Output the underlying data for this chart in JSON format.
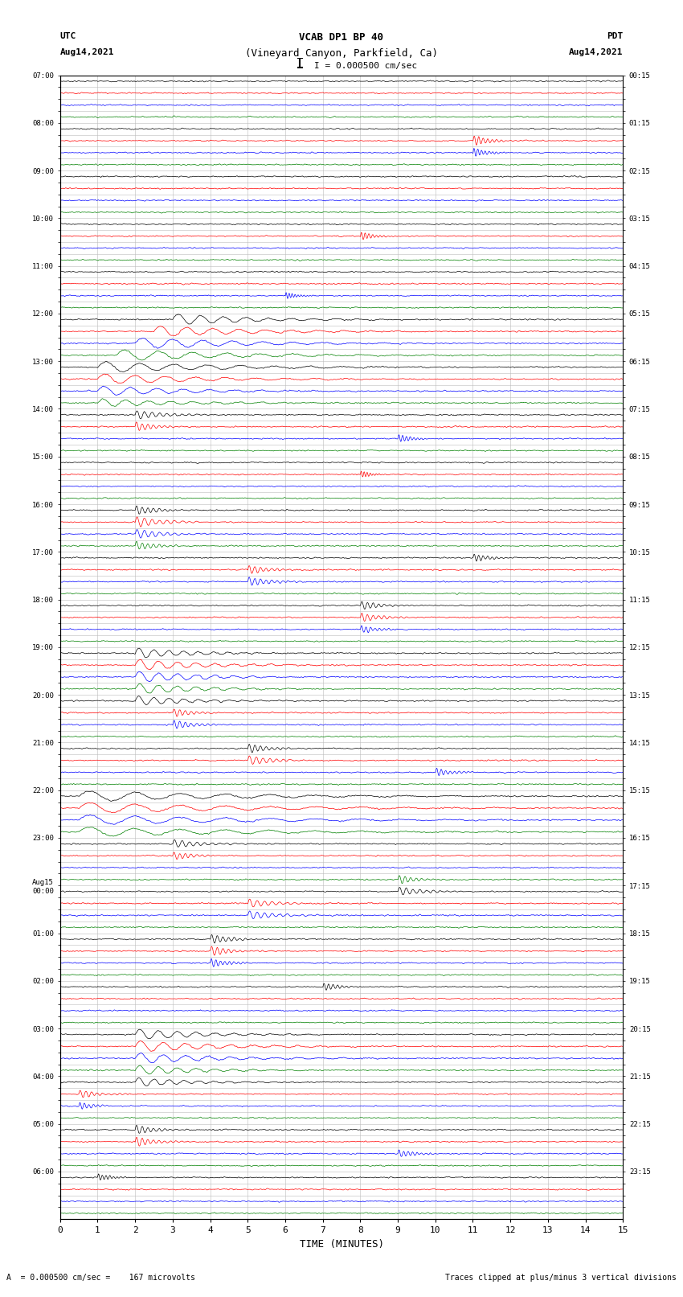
{
  "title_line1": "VCAB DP1 BP 40",
  "title_line2": "(Vineyard Canyon, Parkfield, Ca)",
  "scale_label": "I = 0.000500 cm/sec",
  "left_header1": "UTC",
  "left_header2": "Aug14,2021",
  "right_header1": "PDT",
  "right_header2": "Aug14,2021",
  "xlabel": "TIME (MINUTES)",
  "bottom_left": "A  = 0.000500 cm/sec =    167 microvolts",
  "bottom_right": "Traces clipped at plus/minus 3 vertical divisions",
  "utc_labels": [
    "07:00",
    "",
    "",
    "",
    "08:00",
    "",
    "",
    "",
    "09:00",
    "",
    "",
    "",
    "10:00",
    "",
    "",
    "",
    "11:00",
    "",
    "",
    "",
    "12:00",
    "",
    "",
    "",
    "13:00",
    "",
    "",
    "",
    "14:00",
    "",
    "",
    "",
    "15:00",
    "",
    "",
    "",
    "16:00",
    "",
    "",
    "",
    "17:00",
    "",
    "",
    "",
    "18:00",
    "",
    "",
    "",
    "19:00",
    "",
    "",
    "",
    "20:00",
    "",
    "",
    "",
    "21:00",
    "",
    "",
    "",
    "22:00",
    "",
    "",
    "",
    "23:00",
    "",
    "",
    "",
    "Aug15\n00:00",
    "",
    "",
    "",
    "01:00",
    "",
    "",
    "",
    "02:00",
    "",
    "",
    "",
    "03:00",
    "",
    "",
    "",
    "04:00",
    "",
    "",
    "",
    "05:00",
    "",
    "",
    "",
    "06:00",
    "",
    "",
    ""
  ],
  "pdt_labels": [
    "00:15",
    "",
    "",
    "",
    "01:15",
    "",
    "",
    "",
    "02:15",
    "",
    "",
    "",
    "03:15",
    "",
    "",
    "",
    "04:15",
    "",
    "",
    "",
    "05:15",
    "",
    "",
    "",
    "06:15",
    "",
    "",
    "",
    "07:15",
    "",
    "",
    "",
    "08:15",
    "",
    "",
    "",
    "09:15",
    "",
    "",
    "",
    "10:15",
    "",
    "",
    "",
    "11:15",
    "",
    "",
    "",
    "12:15",
    "",
    "",
    "",
    "13:15",
    "",
    "",
    "",
    "14:15",
    "",
    "",
    "",
    "15:15",
    "",
    "",
    "",
    "16:15",
    "",
    "",
    "",
    "17:15",
    "",
    "",
    "",
    "18:15",
    "",
    "",
    "",
    "19:15",
    "",
    "",
    "",
    "20:15",
    "",
    "",
    "",
    "21:15",
    "",
    "",
    "",
    "22:15",
    "",
    "",
    "",
    "23:15",
    "",
    "",
    ""
  ],
  "n_rows": 96,
  "colors": [
    "black",
    "red",
    "blue",
    "green"
  ],
  "fig_width": 8.5,
  "fig_height": 16.13,
  "dpi": 100,
  "bg_color": "white",
  "grid_color": "#bbbbbb",
  "xmin": 0,
  "xmax": 15,
  "xticks": [
    0,
    1,
    2,
    3,
    4,
    5,
    6,
    7,
    8,
    9,
    10,
    11,
    12,
    13,
    14,
    15
  ],
  "font_family": "monospace"
}
